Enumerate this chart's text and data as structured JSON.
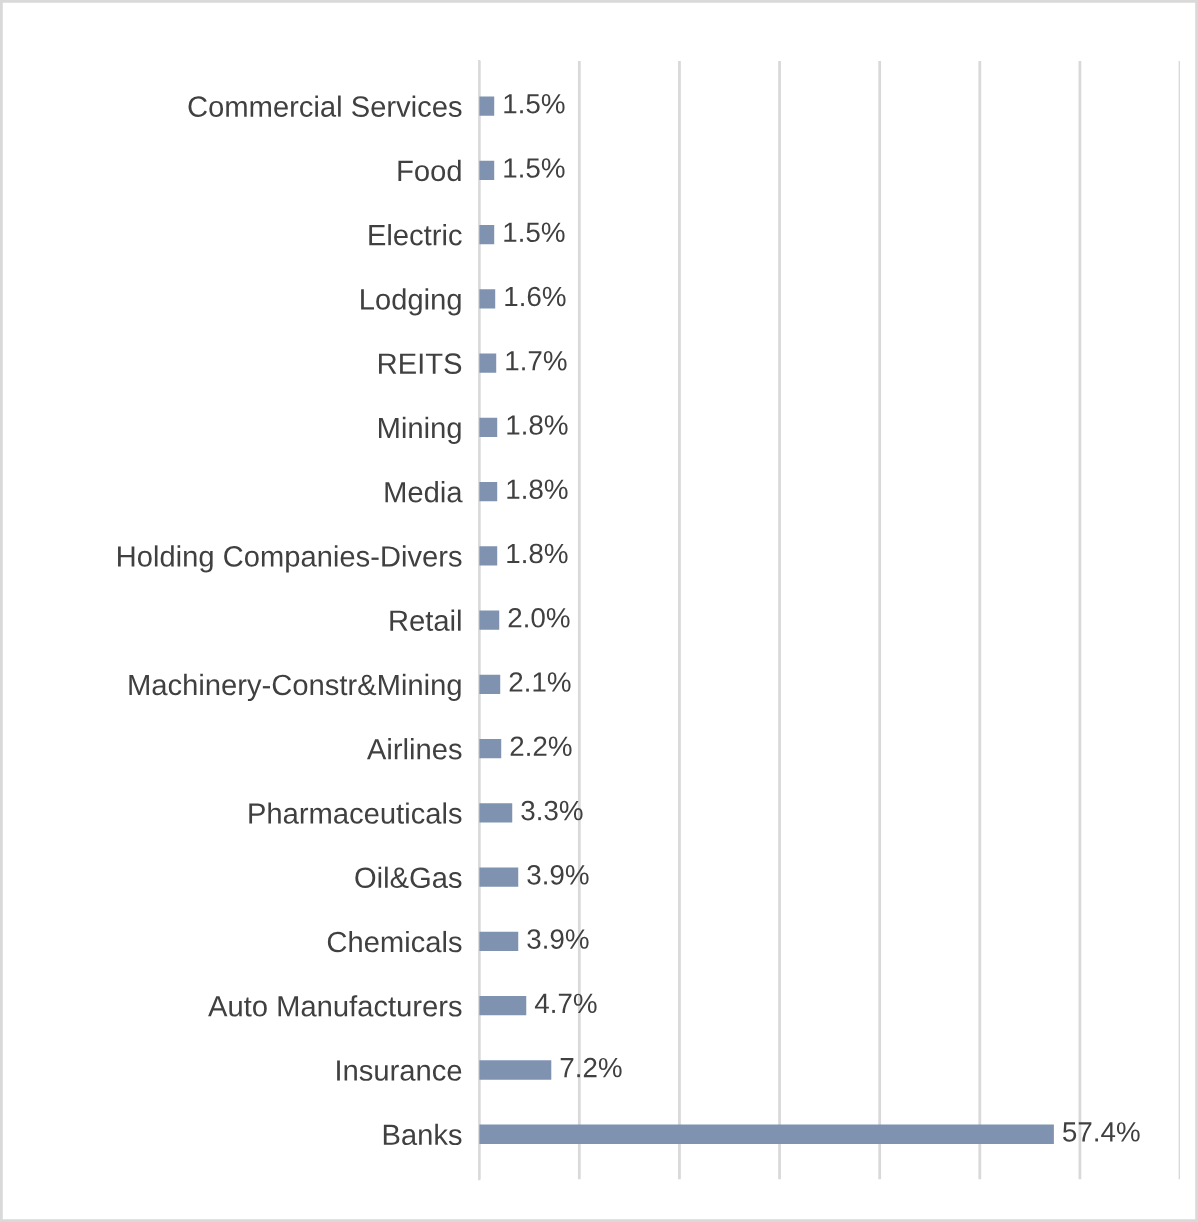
{
  "chart_data": {
    "type": "bar",
    "orientation": "horizontal",
    "categories": [
      "Commercial Services",
      "Food",
      "Electric",
      "Lodging",
      "REITS",
      "Mining",
      "Media",
      "Holding Companies-Divers",
      "Retail",
      "Machinery-Constr&Mining",
      "Airlines",
      "Pharmaceuticals",
      "Oil&Gas",
      "Chemicals",
      "Auto Manufacturers",
      "Insurance",
      "Banks"
    ],
    "values": [
      1.5,
      1.5,
      1.5,
      1.6,
      1.7,
      1.8,
      1.8,
      1.8,
      2.0,
      2.1,
      2.2,
      3.3,
      3.9,
      3.9,
      4.7,
      7.2,
      57.4
    ],
    "value_labels": [
      "1.5%",
      "1.5%",
      "1.5%",
      "1.6%",
      "1.7%",
      "1.8%",
      "1.8%",
      "1.8%",
      "2.0%",
      "2.1%",
      "2.2%",
      "3.3%",
      "3.9%",
      "3.9%",
      "4.7%",
      "7.2%",
      "57.4%"
    ],
    "color": "#7f93b0",
    "xlim": [
      0,
      70
    ],
    "xticks": [
      {
        "value": 0,
        "label": null
      },
      {
        "value": 10,
        "label": null
      },
      {
        "value": 20,
        "label": null
      },
      {
        "value": 30,
        "label": null
      },
      {
        "value": 40,
        "label": null
      },
      {
        "value": 50,
        "label": null
      },
      {
        "value": 60,
        "label": null
      },
      {
        "value": 70,
        "label": null
      }
    ],
    "tick_labels": "y",
    "grid": "x",
    "legend": false
  }
}
